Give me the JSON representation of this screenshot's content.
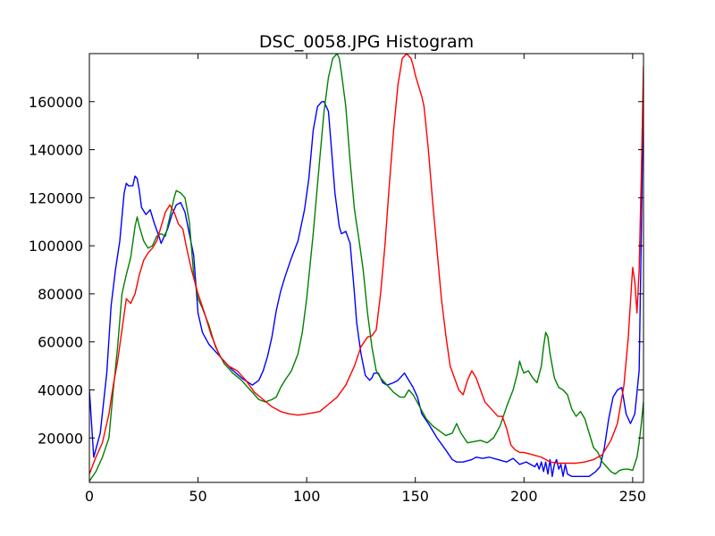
{
  "chart_data": {
    "type": "line",
    "title": "DSC_0058.JPG Histogram",
    "xlabel": "",
    "ylabel": "",
    "xlim": [
      0,
      255
    ],
    "ylim": [
      1500,
      180000
    ],
    "xticks": [
      0,
      50,
      100,
      150,
      200,
      250
    ],
    "yticks": [
      20000,
      40000,
      60000,
      80000,
      100000,
      120000,
      140000,
      160000
    ],
    "grid": false,
    "legend": "none",
    "series": [
      {
        "color": "#0000ff",
        "x": [
          0,
          2,
          5,
          8,
          10,
          12,
          14,
          16,
          17,
          18,
          20,
          21,
          22,
          23,
          24,
          26,
          28,
          30,
          32,
          33,
          34,
          36,
          38,
          40,
          42,
          44,
          46,
          48,
          50,
          52,
          55,
          60,
          65,
          70,
          75,
          78,
          80,
          82,
          84,
          86,
          88,
          90,
          93,
          96,
          99,
          101,
          103,
          105,
          107,
          108,
          110,
          111,
          113,
          115,
          116,
          118,
          120,
          122,
          123,
          125,
          127,
          129,
          130,
          131,
          133,
          135,
          137,
          140,
          142,
          144,
          145,
          147,
          149,
          151,
          153,
          156,
          160,
          164,
          167,
          169,
          172,
          176,
          178,
          181,
          184,
          188,
          192,
          195,
          198,
          201,
          203,
          205,
          206,
          207,
          208,
          209,
          210,
          211,
          212,
          213,
          214,
          215,
          216,
          217,
          218,
          219,
          220,
          222,
          225,
          230,
          233,
          235,
          237,
          239,
          241,
          243,
          245,
          247,
          249,
          251,
          253,
          254,
          255
        ],
        "y": [
          40000,
          12000,
          22000,
          47000,
          75000,
          90000,
          102000,
          122000,
          126000,
          125000,
          125000,
          129000,
          128000,
          123000,
          116000,
          113000,
          115000,
          109000,
          104000,
          101000,
          103000,
          107000,
          113000,
          117000,
          118000,
          114000,
          105000,
          96000,
          72000,
          64000,
          59000,
          54000,
          49000,
          45000,
          42000,
          44000,
          48000,
          54000,
          62000,
          73000,
          81000,
          87000,
          95000,
          102000,
          115000,
          128000,
          148000,
          158000,
          160000,
          160000,
          156000,
          145000,
          122000,
          108000,
          105000,
          106000,
          101000,
          80000,
          68000,
          55000,
          46000,
          44000,
          45000,
          47000,
          47000,
          43000,
          42000,
          43000,
          44000,
          46000,
          47000,
          44000,
          41000,
          37000,
          30000,
          26000,
          20000,
          15000,
          11000,
          10000,
          10000,
          11000,
          12000,
          11500,
          12000,
          11000,
          10000,
          11500,
          9000,
          10000,
          9000,
          8000,
          9500,
          7000,
          10000,
          6000,
          10000,
          5000,
          11000,
          4000,
          9000,
          11000,
          7000,
          9000,
          4000,
          9000,
          5000,
          4000,
          4000,
          4000,
          6000,
          8000,
          16000,
          28000,
          37000,
          40000,
          41000,
          30000,
          26000,
          30000,
          48000,
          105000,
          170000
        ]
      },
      {
        "color": "#008000",
        "x": [
          0,
          3,
          6,
          9,
          11,
          13,
          15,
          17,
          19,
          21,
          22,
          23,
          25,
          27,
          29,
          31,
          33,
          35,
          37,
          39,
          40,
          42,
          44,
          46,
          48,
          50,
          52,
          55,
          58,
          62,
          66,
          70,
          74,
          78,
          81,
          84,
          86,
          88,
          90,
          93,
          96,
          98,
          100,
          103,
          106,
          108,
          110,
          112,
          114,
          115,
          116,
          118,
          120,
          122,
          124,
          126,
          128,
          130,
          132,
          134,
          136,
          138,
          140,
          143,
          145,
          147,
          149,
          152,
          155,
          158,
          161,
          164,
          167,
          169,
          171,
          174,
          177,
          180,
          183,
          186,
          189,
          192,
          195,
          197,
          198,
          199,
          200,
          202,
          204,
          206,
          208,
          209,
          210,
          211,
          212,
          213,
          214,
          216,
          218,
          220,
          222,
          224,
          226,
          228,
          230,
          232,
          234,
          236,
          238,
          240,
          242,
          244,
          246,
          248,
          250,
          252,
          253,
          254,
          255
        ],
        "y": [
          2000,
          6000,
          12000,
          20000,
          40000,
          58000,
          80000,
          88000,
          95000,
          108000,
          112000,
          108000,
          102000,
          99000,
          100000,
          104000,
          105000,
          104000,
          112000,
          120000,
          123000,
          122000,
          120000,
          110000,
          88000,
          78000,
          74000,
          67000,
          58000,
          51000,
          47000,
          44000,
          40000,
          36000,
          35000,
          36000,
          37000,
          41000,
          44000,
          48000,
          55000,
          64000,
          78000,
          105000,
          136000,
          156000,
          170000,
          178000,
          180000,
          178000,
          172000,
          158000,
          135000,
          115000,
          103000,
          90000,
          72000,
          58000,
          48000,
          45000,
          43000,
          41000,
          39000,
          37000,
          37000,
          40000,
          38000,
          33000,
          28000,
          25000,
          23000,
          21000,
          22000,
          26000,
          22000,
          18000,
          18500,
          19000,
          18000,
          20000,
          25000,
          33000,
          40000,
          47000,
          52000,
          49000,
          47000,
          48000,
          45000,
          43000,
          50000,
          58000,
          64000,
          62000,
          55000,
          50000,
          45000,
          41000,
          40000,
          38000,
          32000,
          29000,
          31000,
          28000,
          22000,
          16000,
          14000,
          10000,
          8000,
          6000,
          5000,
          6500,
          7000,
          7000,
          6500,
          12000,
          18000,
          26000,
          35000
        ]
      },
      {
        "color": "#ff0000",
        "x": [
          0,
          3,
          6,
          9,
          11,
          13,
          15,
          17,
          19,
          21,
          23,
          25,
          27,
          29,
          31,
          33,
          35,
          37,
          39,
          41,
          43,
          45,
          47,
          50,
          53,
          56,
          60,
          64,
          68,
          72,
          76,
          80,
          84,
          88,
          92,
          96,
          100,
          103,
          106,
          110,
          114,
          118,
          122,
          125,
          128,
          130,
          132,
          134,
          136,
          138,
          140,
          142,
          144,
          146,
          148,
          149,
          150,
          151,
          152,
          153,
          154,
          156,
          158,
          160,
          162,
          164,
          166,
          168,
          170,
          172,
          174,
          176,
          178,
          180,
          182,
          184,
          186,
          188,
          190,
          192,
          194,
          196,
          198,
          200,
          204,
          208,
          212,
          216,
          220,
          224,
          228,
          232,
          236,
          240,
          243,
          246,
          248,
          250,
          251,
          252,
          253,
          254,
          255
        ],
        "y": [
          5000,
          12000,
          18000,
          30000,
          42000,
          52000,
          65000,
          78000,
          76000,
          80000,
          88000,
          94000,
          97000,
          99000,
          102000,
          108000,
          114000,
          117000,
          114000,
          109000,
          107000,
          98000,
          90000,
          80000,
          72000,
          63000,
          54000,
          50000,
          48000,
          44000,
          39000,
          36000,
          33000,
          31000,
          30000,
          29500,
          30000,
          30500,
          31000,
          34000,
          37000,
          42000,
          50000,
          58000,
          62000,
          62500,
          65000,
          80000,
          100000,
          125000,
          148000,
          167000,
          178000,
          180000,
          178000,
          175000,
          171000,
          168000,
          165000,
          162000,
          158000,
          140000,
          118000,
          98000,
          78000,
          63000,
          50000,
          45000,
          40000,
          38000,
          44000,
          48000,
          45000,
          40000,
          35000,
          33000,
          31000,
          29000,
          29000,
          24000,
          17000,
          15000,
          14000,
          14000,
          13000,
          12000,
          10000,
          9500,
          9500,
          9500,
          10000,
          11000,
          13000,
          19000,
          26000,
          42000,
          62000,
          91000,
          85000,
          72000,
          90000,
          130000,
          175000
        ]
      }
    ]
  }
}
